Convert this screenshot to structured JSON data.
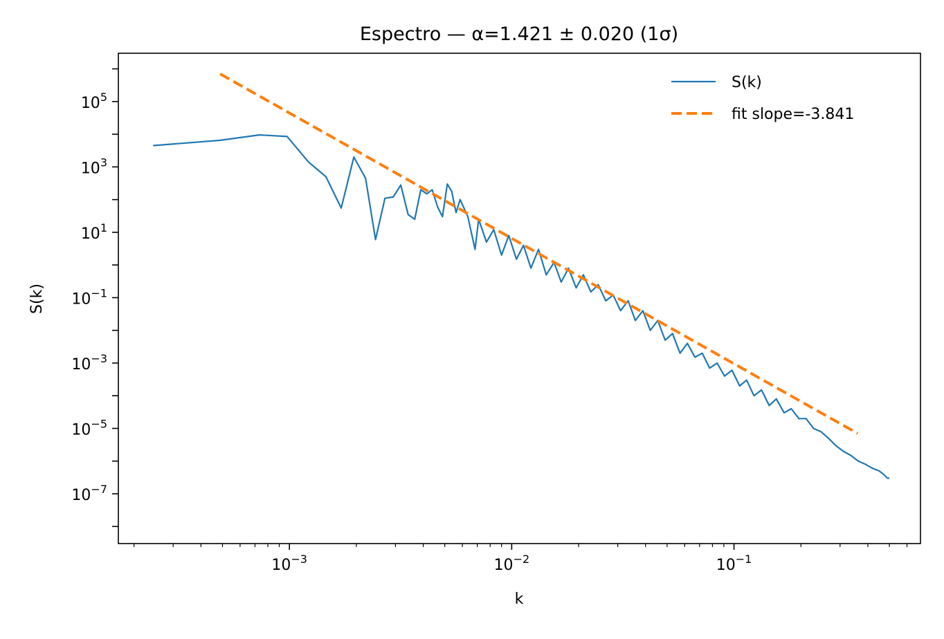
{
  "chart_data": {
    "type": "line",
    "title": "Espectro — α=1.421 ± 0.020 (1σ)",
    "xlabel": "k",
    "ylabel": "S(k)",
    "xscale": "log",
    "yscale": "log",
    "xlim": [
      0.00017,
      0.69
    ],
    "ylim": [
      3e-09,
      3000000.0
    ],
    "xtick_labels": [
      {
        "value": 0.001,
        "base": "10",
        "exp": "−3"
      },
      {
        "value": 0.01,
        "base": "10",
        "exp": "−2"
      },
      {
        "value": 0.1,
        "base": "10",
        "exp": "−1"
      }
    ],
    "ytick_labels": [
      {
        "value": 100000,
        "base": "10",
        "exp": "5"
      },
      {
        "value": 1000,
        "base": "10",
        "exp": "3"
      },
      {
        "value": 10,
        "base": "10",
        "exp": "1"
      },
      {
        "value": 0.1,
        "base": "10",
        "exp": "−1"
      },
      {
        "value": 0.001,
        "base": "10",
        "exp": "−3"
      },
      {
        "value": 1e-05,
        "base": "10",
        "exp": "−5"
      },
      {
        "value": 1e-07,
        "base": "10",
        "exp": "−7"
      }
    ],
    "grid": false,
    "legend_position": "top-right",
    "series": [
      {
        "name": "S(k)",
        "color": "#1f77b4",
        "style": "solid",
        "x": [
          0.000244,
          0.000488,
          0.000732,
          0.000977,
          0.00122,
          0.00146,
          0.00171,
          0.00195,
          0.0022,
          0.00244,
          0.00269,
          0.00293,
          0.00317,
          0.00342,
          0.00366,
          0.0039,
          0.00415,
          0.00439,
          0.00464,
          0.00488,
          0.00513,
          0.00537,
          0.00562,
          0.00586,
          0.00635,
          0.00684,
          0.0071,
          0.0077,
          0.0083,
          0.009,
          0.0097,
          0.0105,
          0.0113,
          0.0122,
          0.0132,
          0.0143,
          0.0155,
          0.0167,
          0.018,
          0.0195,
          0.021,
          0.0227,
          0.0245,
          0.0265,
          0.0286,
          0.0309,
          0.0334,
          0.036,
          0.0389,
          0.042,
          0.0454,
          0.049,
          0.0529,
          0.0572,
          0.0617,
          0.0667,
          0.072,
          0.0777,
          0.084,
          0.0907,
          0.098,
          0.106,
          0.114,
          0.123,
          0.133,
          0.144,
          0.155,
          0.168,
          0.181,
          0.196,
          0.211,
          0.228,
          0.246,
          0.266,
          0.287,
          0.31,
          0.335,
          0.362,
          0.39,
          0.42,
          0.45,
          0.47,
          0.49,
          0.5
        ],
        "y": [
          4500,
          6500,
          9500,
          8500,
          1400,
          500,
          55,
          2000,
          450,
          6,
          110,
          120,
          280,
          35,
          25,
          200,
          150,
          200,
          60,
          30,
          300,
          180,
          40,
          100,
          30,
          3,
          25,
          5,
          12,
          2,
          8,
          1.5,
          4,
          0.8,
          3,
          0.5,
          1.2,
          0.3,
          0.8,
          0.2,
          0.5,
          0.15,
          0.25,
          0.08,
          0.12,
          0.04,
          0.08,
          0.02,
          0.04,
          0.01,
          0.02,
          0.005,
          0.008,
          0.002,
          0.004,
          0.0015,
          0.002,
          0.0007,
          0.001,
          0.0004,
          0.0006,
          0.0002,
          0.0003,
          0.0001,
          0.00015,
          5e-05,
          8e-05,
          3e-05,
          4e-05,
          2e-05,
          2e-05,
          1e-05,
          8e-06,
          5e-06,
          3e-06,
          2e-06,
          1.5e-06,
          1e-06,
          8e-07,
          6e-07,
          5e-07,
          4e-07,
          3e-07,
          3e-07
        ]
      },
      {
        "name": "fit slope=-3.841",
        "color": "#ff7f0e",
        "style": "dashed",
        "x": [
          0.000488,
          0.36
        ],
        "y": [
          700000,
          7e-06
        ]
      }
    ]
  }
}
